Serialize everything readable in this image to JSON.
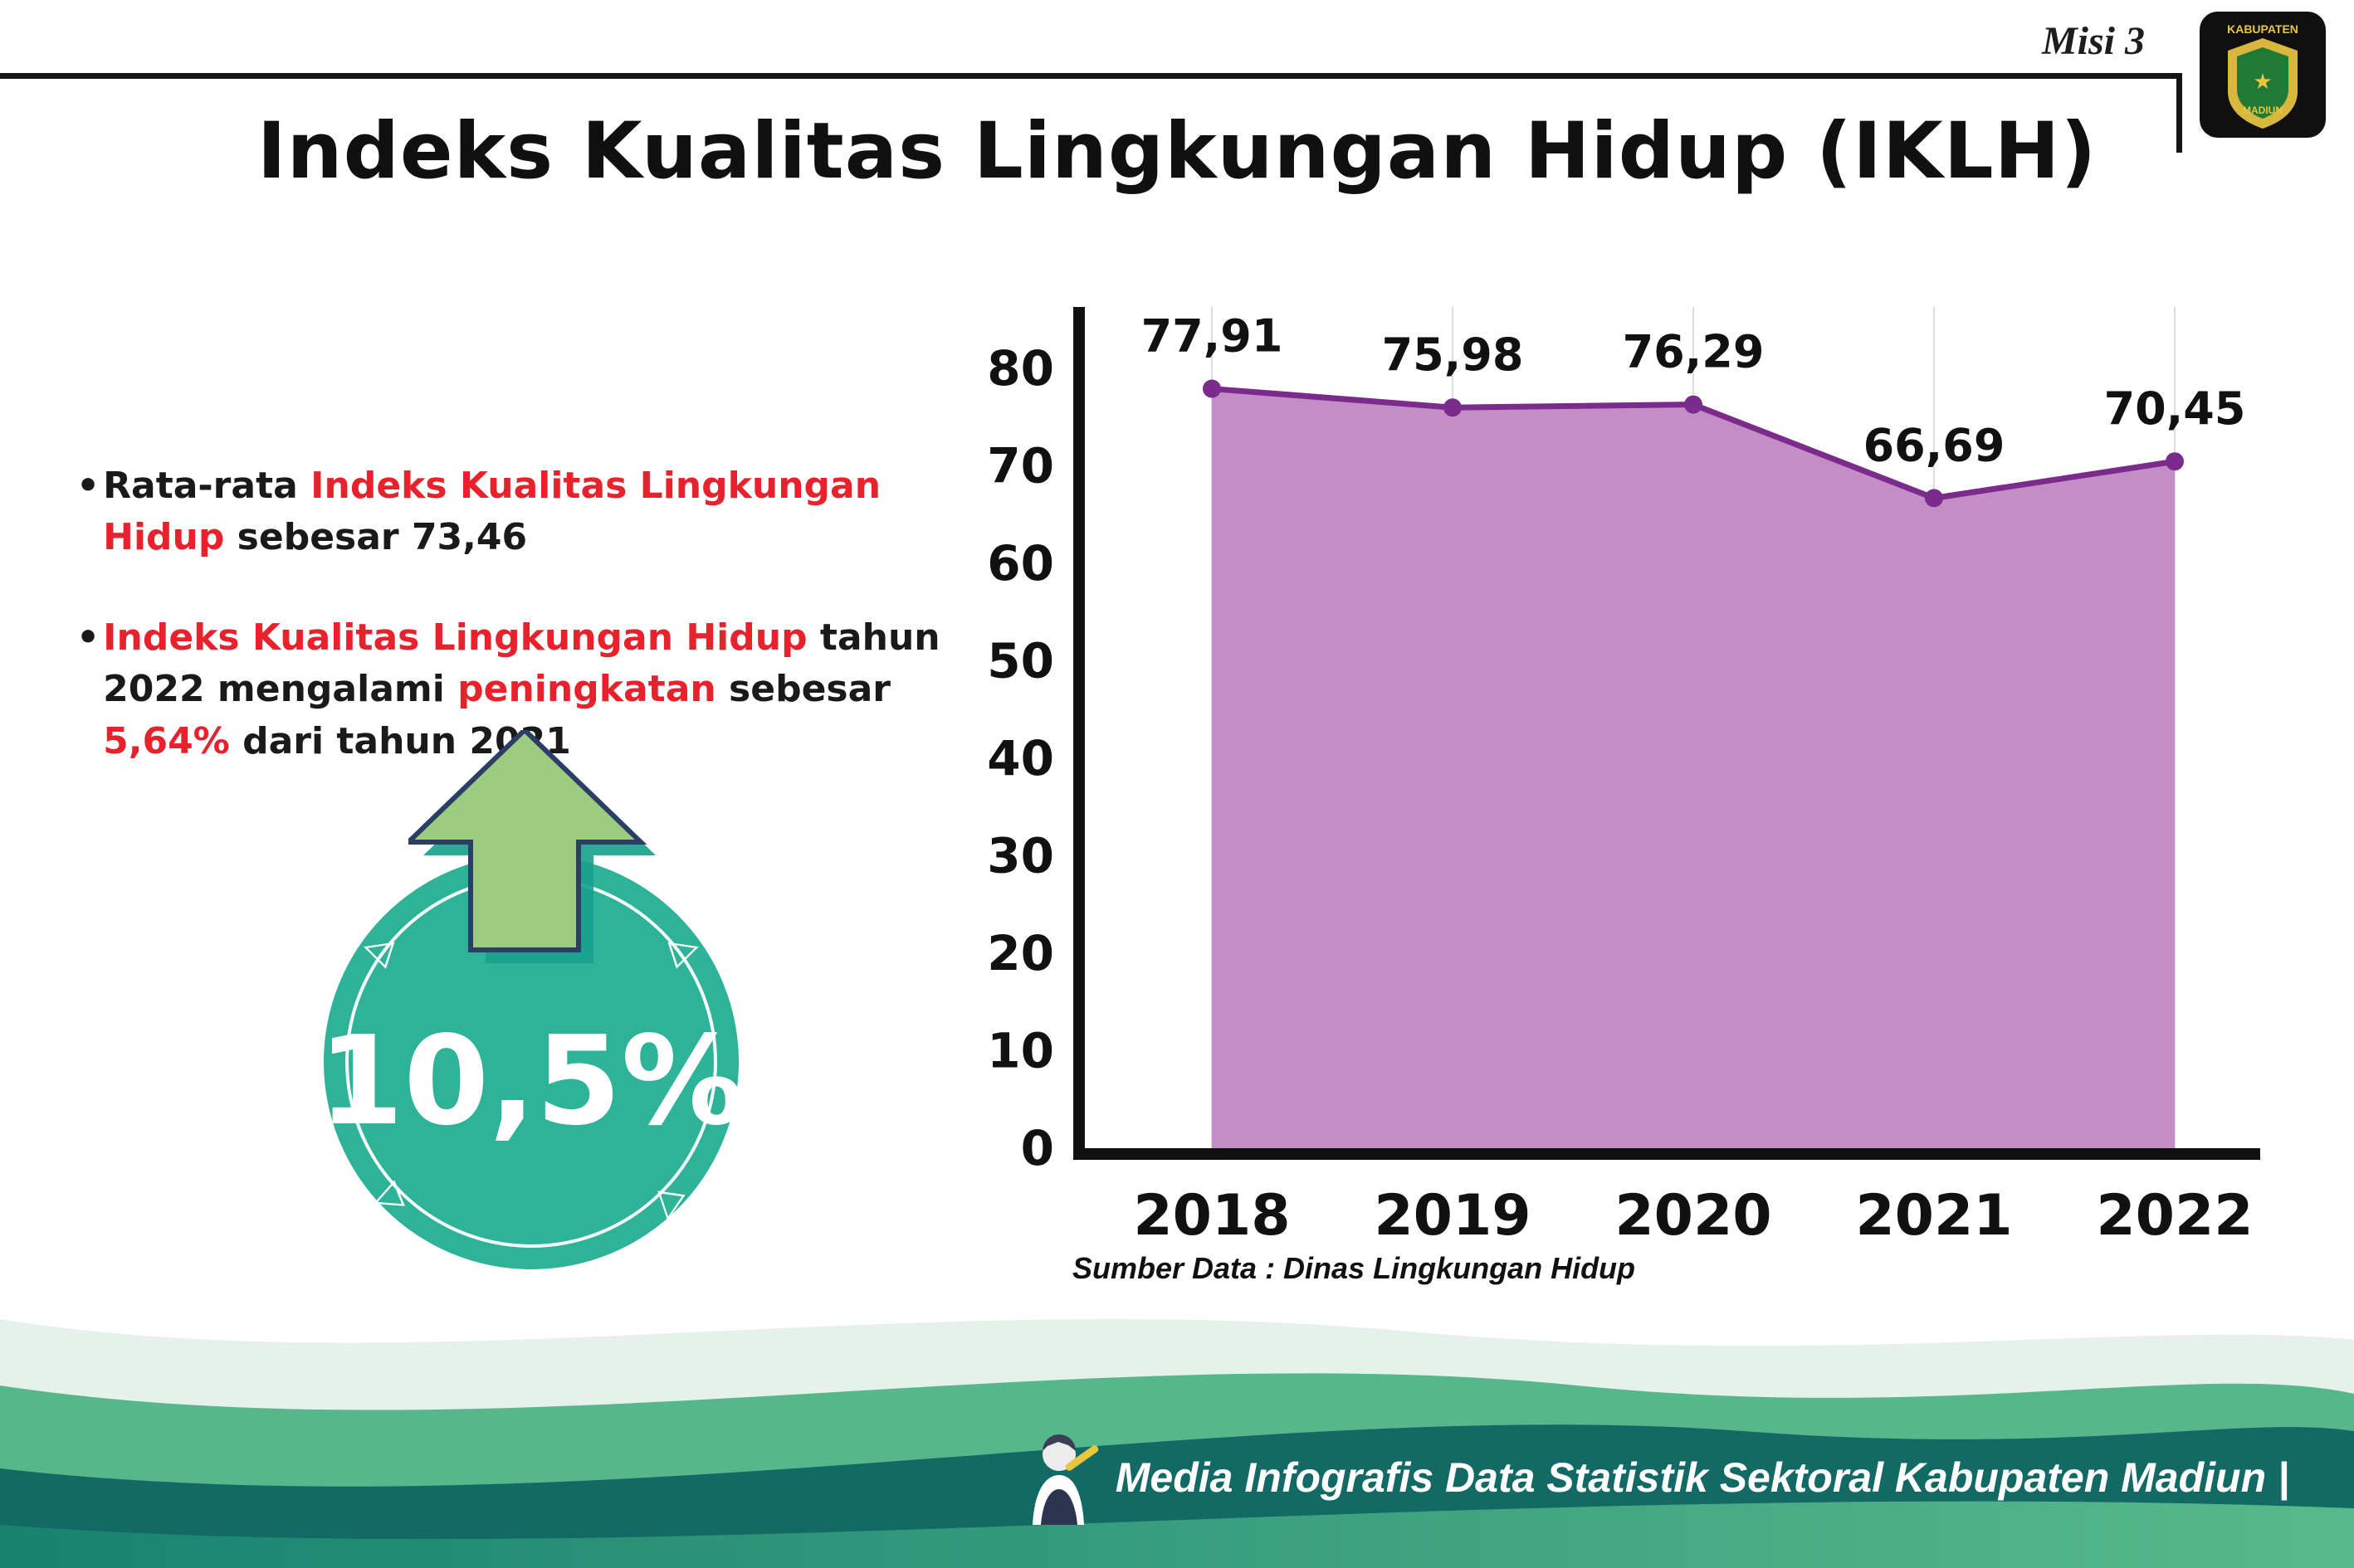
{
  "header": {
    "misi": "Misi 3",
    "logo": {
      "line1": "KABUPATEN",
      "line2": "MADIUN",
      "star": "★"
    }
  },
  "title": "Indeks Kualitas Lingkungan Hidup (IKLH)",
  "bullets": {
    "dot": "•",
    "b1": {
      "seg1": "Rata-rata ",
      "seg2": "Indeks Kualitas Lingkungan Hidup",
      "seg3": " sebesar 73,46"
    },
    "b2": {
      "seg1": "Indeks Kualitas Lingkungan Hidup",
      "seg2": " tahun 2022 mengalami ",
      "seg3": "peningkatan",
      "seg4": " sebesar ",
      "seg5": "5,64%",
      "seg6": " dari tahun 2021"
    }
  },
  "badge": {
    "value": "10,5%",
    "triangle_left": "◁",
    "triangle_right": "▷",
    "triangle_down": "▽"
  },
  "chart_data": {
    "type": "area",
    "x": [
      "2018",
      "2019",
      "2020",
      "2021",
      "2022"
    ],
    "values": [
      77.91,
      75.98,
      76.29,
      66.69,
      70.45
    ],
    "point_labels": [
      "77,91",
      "75,98",
      "76,29",
      "66,69",
      "70,45"
    ],
    "ylim": [
      0,
      80
    ],
    "yticks": [
      0,
      10,
      20,
      30,
      40,
      50,
      60,
      70,
      80
    ],
    "grid": "vertical-per-category",
    "legend": "none",
    "title": "",
    "xlabel": "",
    "ylabel": "",
    "source": "Sumber Data : Dinas Lingkungan Hidup"
  },
  "footer": {
    "caption": "Media Infografis Data Statistik Sektoral Kabupaten Madiun |"
  },
  "colors": {
    "accent_red": "#e8222c",
    "teal_badge": "#2eb398",
    "arrow_green": "#9dcb7f",
    "arrow_outline": "#2b3f66",
    "ink": "#111111",
    "area_purple": "#c38dc6",
    "line_purple": "#7b2b8b",
    "wave_light": "#e7f1ec",
    "wave_green": "#56b78b",
    "wave_dark": "#136964",
    "wave_grad_start": "#19826f",
    "wave_grad_end": "#58b98c"
  }
}
